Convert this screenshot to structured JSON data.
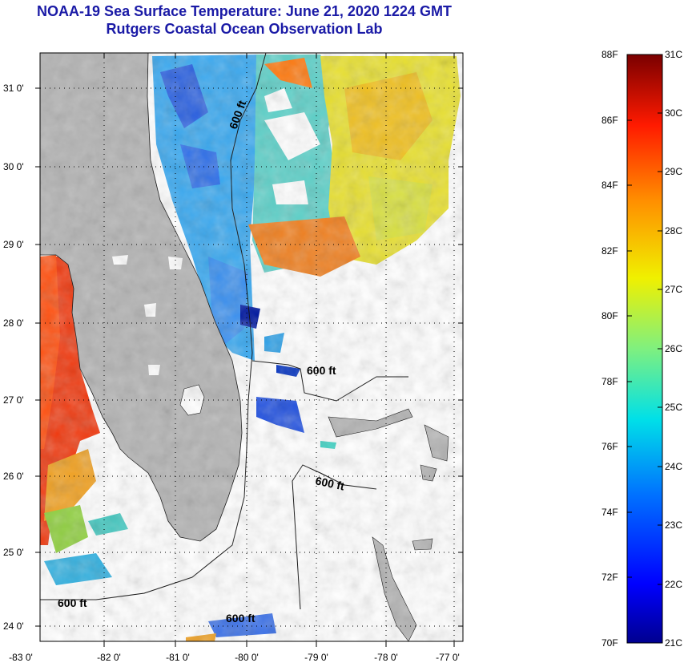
{
  "title": "NOAA-19 Sea Surface Temperature:  June 21, 2020 1224 GMT",
  "subtitle": "Rutgers Coastal Ocean Observation Lab",
  "map": {
    "lon_ticks": [
      "-83 0'",
      "-82 0'",
      "-81 0'",
      "-80 0'",
      "-79 0'",
      "-78 0'",
      "-77 0'"
    ],
    "lat_ticks": [
      "31 0'",
      "30 0'",
      "29 0'",
      "28 0'",
      "27 0'",
      "26 0'",
      "25 0'",
      "24 0'"
    ],
    "contour_labels": [
      "600 ft",
      "600 ft",
      "600 ft",
      "600 ft",
      "600 ft"
    ]
  },
  "colorbar": {
    "fahrenheit": [
      "88F",
      "86F",
      "84F",
      "82F",
      "80F",
      "78F",
      "76F",
      "74F",
      "72F",
      "70F"
    ],
    "celsius": [
      "31C",
      "30C",
      "29C",
      "28C",
      "27C",
      "26C",
      "25C",
      "24C",
      "23C",
      "22C",
      "21C"
    ]
  },
  "colors": {
    "land": "#b3b3b3",
    "title": "#1a1aa6"
  }
}
